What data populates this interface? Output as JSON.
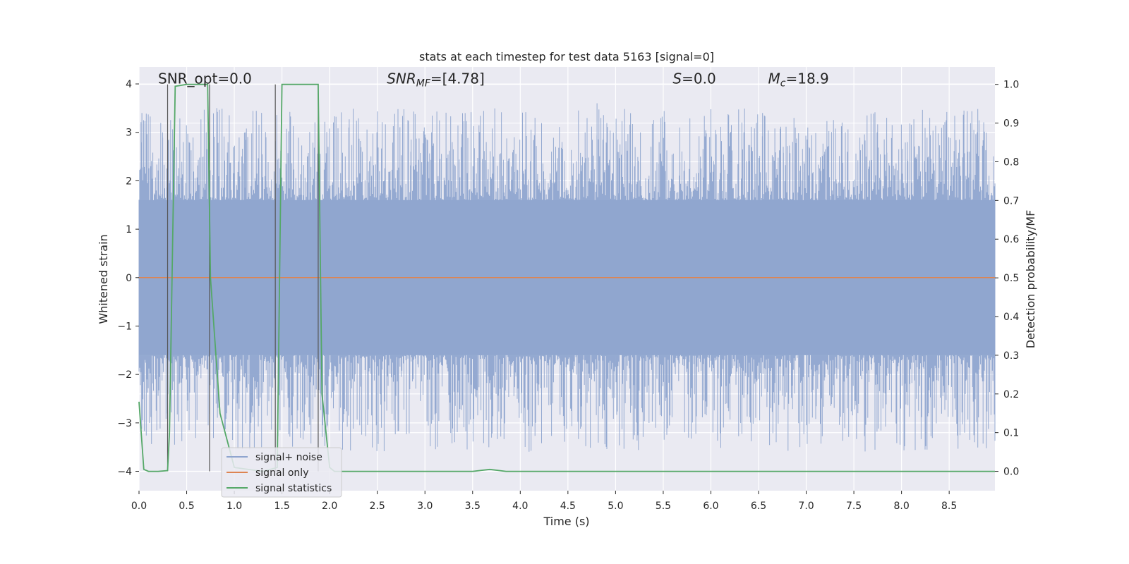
{
  "chart_data": {
    "type": "line",
    "title": "stats at each timestep for test data 5163 [signal=0]",
    "xlabel": "Time (s)",
    "ylabel_left": "Whitened strain",
    "ylabel_right": "Detection probability/MF",
    "xlim": [
      0.0,
      8.98
    ],
    "ylim_left": [
      -4.4,
      4.35
    ],
    "ylim_right": [
      -0.05,
      1.045
    ],
    "grid": true,
    "legend_placement": "lower-left",
    "x_ticks": [
      "0.0",
      "0.5",
      "1.0",
      "1.5",
      "2.0",
      "2.5",
      "3.0",
      "3.5",
      "4.0",
      "4.5",
      "5.0",
      "5.5",
      "6.0",
      "6.5",
      "7.0",
      "7.5",
      "8.0",
      "8.5"
    ],
    "x_tick_values": [
      0.0,
      0.5,
      1.0,
      1.5,
      2.0,
      2.5,
      3.0,
      3.5,
      4.0,
      4.5,
      5.0,
      5.5,
      6.0,
      6.5,
      7.0,
      7.5,
      8.0,
      8.5
    ],
    "y_left_ticks": [
      "4",
      "3",
      "2",
      "1",
      "0",
      "−1",
      "−2",
      "−3",
      "−4"
    ],
    "y_left_tick_values": [
      4,
      3,
      2,
      1,
      0,
      -1,
      -2,
      -3,
      -4
    ],
    "y_right_ticks": [
      "1.0",
      "0.9",
      "0.8",
      "0.7",
      "0.6",
      "0.5",
      "0.4",
      "0.3",
      "0.2",
      "0.1",
      "0.0"
    ],
    "y_right_tick_values": [
      1.0,
      0.9,
      0.8,
      0.7,
      0.6,
      0.5,
      0.4,
      0.3,
      0.2,
      0.1,
      0.0
    ],
    "annotations": [
      {
        "text": "SNR_opt=0.0",
        "x": 0.2,
        "y_right": 1.0
      },
      {
        "text": "SNR_MF=[4.78]",
        "x": 2.6,
        "y_right": 1.0,
        "parts": [
          "SNR",
          "MF",
          "=[4.78]"
        ]
      },
      {
        "text": "S=0.0",
        "x": 5.6,
        "y_right": 1.0,
        "parts": [
          "S",
          "",
          "=0.0"
        ]
      },
      {
        "text": "M_c=18.9",
        "x": 6.6,
        "y_right": 1.0,
        "parts": [
          "M",
          "c",
          "=18.9"
        ]
      }
    ],
    "series": [
      {
        "name": "signal+ noise",
        "color": "#8fa5cf",
        "axis": "left",
        "description_values": "dense whitened noise, range approx -4 to 4",
        "envelope_core": [
          -1.6,
          1.6
        ],
        "spike_peaks": [
          3.4,
          3.0,
          2.8,
          2.5,
          2.3,
          3.0,
          2.9,
          2.2,
          2.5,
          2.7,
          3.1,
          2.4,
          2.2,
          2.6,
          3.0,
          2.8,
          2.3,
          2.5,
          2.9,
          3.3,
          2.7,
          2.4,
          3.6,
          2.6,
          2.2,
          2.8,
          3.1,
          2.5,
          2.3,
          2.9,
          3.4,
          2.7,
          2.4,
          2.6,
          3.0,
          2.5,
          3.3,
          2.8,
          2.4,
          2.9,
          2.6
        ]
      },
      {
        "name": "signal only",
        "color": "#dd8452",
        "axis": "left",
        "x": [
          0.0,
          8.98
        ],
        "values": [
          0.0,
          0.0
        ]
      },
      {
        "name": "signal statistics",
        "color": "#55a868",
        "axis": "right",
        "x": [
          0.0,
          0.05,
          0.1,
          0.2,
          0.3,
          0.32,
          0.38,
          0.5,
          0.72,
          0.75,
          0.85,
          1.0,
          1.3,
          1.45,
          1.5,
          1.7,
          1.88,
          1.92,
          2.0,
          2.05,
          3.0,
          3.5,
          3.68,
          3.85,
          4.5,
          5.5,
          6.5,
          7.5,
          8.5,
          8.98
        ],
        "values": [
          0.18,
          0.005,
          0.0,
          0.0,
          0.002,
          0.1,
          0.995,
          1.0,
          1.0,
          0.5,
          0.15,
          0.01,
          0.0,
          0.01,
          1.0,
          1.0,
          1.0,
          0.2,
          0.01,
          0.0,
          0.0,
          0.0,
          0.005,
          0.0,
          0.0,
          0.0,
          0.0,
          0.0,
          0.0,
          0.0
        ]
      }
    ],
    "vertical_markers": [
      0.3,
      0.74,
      1.43,
      1.88
    ]
  },
  "legend": {
    "items": [
      {
        "label": "signal+ noise",
        "color": "#8fa5cf"
      },
      {
        "label": "signal only",
        "color": "#dd8452"
      },
      {
        "label": "signal statistics",
        "color": "#55a868"
      }
    ]
  }
}
